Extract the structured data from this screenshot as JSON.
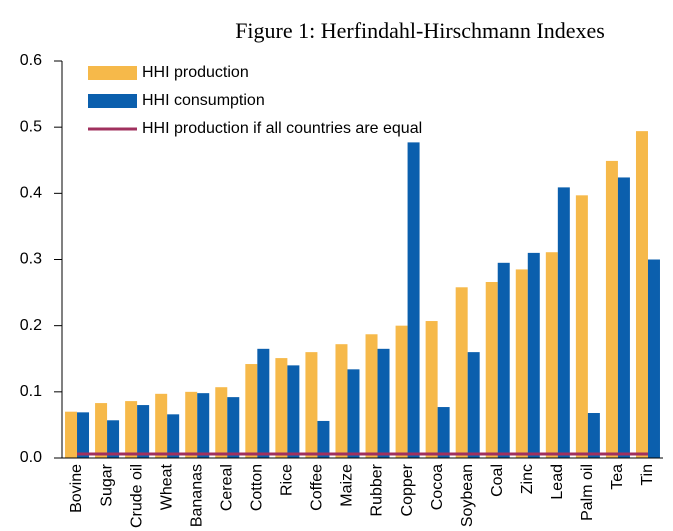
{
  "chart_data": {
    "type": "bar",
    "title": "Figure 1: Herfindahl-Hirschmann Indexes",
    "categories": [
      "Bovine",
      "Sugar",
      "Crude oil",
      "Wheat",
      "Bananas",
      "Cereal",
      "Cotton",
      "Rice",
      "Coffee",
      "Maize",
      "Rubber",
      "Copper",
      "Cocoa",
      "Soybean",
      "Coal",
      "Zinc",
      "Lead",
      "Palm oil",
      "Tea",
      "Tin"
    ],
    "series": [
      {
        "name": "HHI production",
        "type": "bar",
        "color": "#f6b94a",
        "values": [
          0.07,
          0.083,
          0.086,
          0.097,
          0.1,
          0.107,
          0.142,
          0.151,
          0.16,
          0.172,
          0.187,
          0.2,
          0.207,
          0.258,
          0.266,
          0.285,
          0.311,
          0.397,
          0.449,
          0.494
        ]
      },
      {
        "name": "HHI consumption",
        "type": "bar",
        "color": "#0b5fad",
        "values": [
          0.069,
          0.057,
          0.08,
          0.066,
          0.098,
          0.092,
          0.165,
          0.14,
          0.056,
          0.134,
          0.165,
          0.477,
          0.077,
          0.16,
          0.295,
          0.31,
          0.409,
          0.068,
          0.424,
          0.3
        ]
      },
      {
        "name": "HHI production if all countries are equal",
        "type": "line",
        "color": "#a0305e",
        "values": [
          0.006,
          0.006,
          0.006,
          0.006,
          0.006,
          0.006,
          0.006,
          0.006,
          0.006,
          0.006,
          0.006,
          0.006,
          0.006,
          0.006,
          0.006,
          0.006,
          0.006,
          0.006,
          0.006,
          0.006
        ]
      }
    ],
    "ylim": [
      0,
      0.6
    ],
    "yticks": [
      {
        "value": 0,
        "label": "0.0"
      },
      0.1,
      0.2,
      0.3,
      0.4,
      0.5,
      0.6
    ],
    "legend": "upper left"
  }
}
